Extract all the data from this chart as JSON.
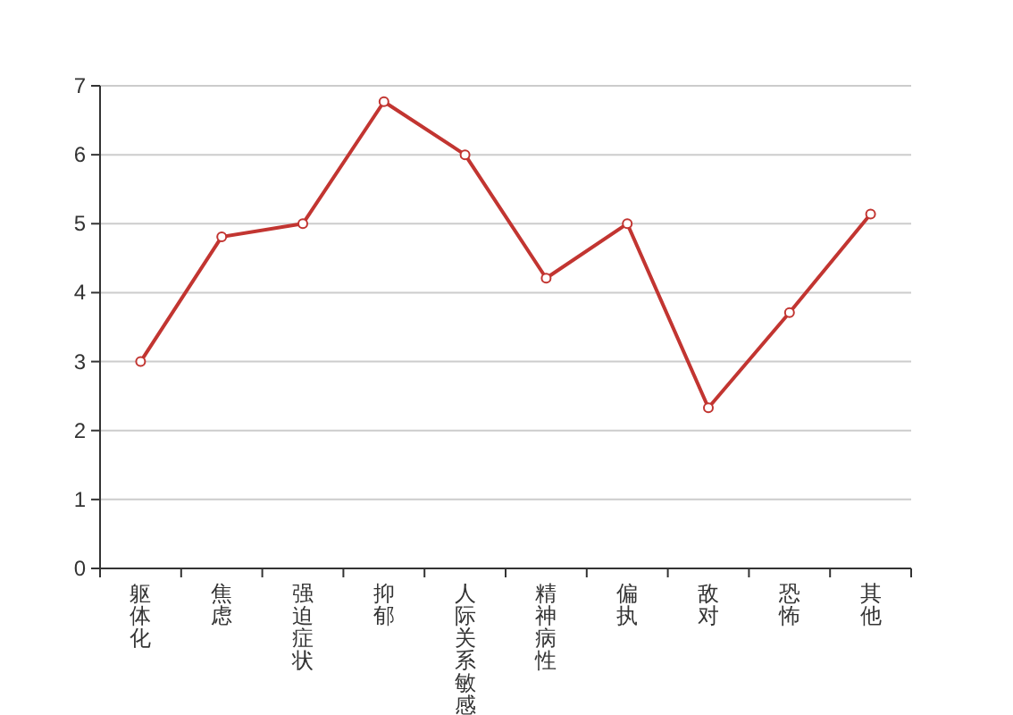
{
  "chart_data": {
    "type": "line",
    "categories": [
      "躯体化",
      "焦虑",
      "强迫症状",
      "抑郁",
      "人际关系敏感",
      "精神病性",
      "偏执",
      "敌对",
      "恐怖",
      "其他"
    ],
    "series": [
      {
        "color": "#c23531",
        "values": [
          3,
          4.81,
          5,
          6.77,
          6,
          4.21,
          5,
          2.33,
          3.71,
          5.14
        ]
      }
    ],
    "ylim": [
      0,
      7
    ],
    "yticks": [
      0,
      1,
      2,
      3,
      4,
      5,
      6,
      7
    ],
    "grid": "y",
    "marker": "circle",
    "line_style": "solid"
  }
}
